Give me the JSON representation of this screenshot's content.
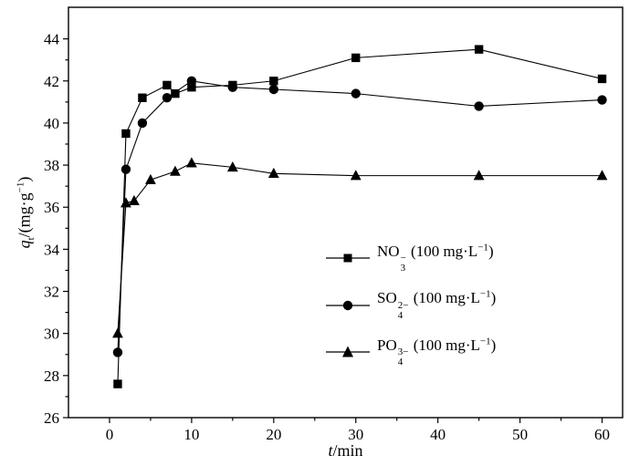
{
  "figure": {
    "background_color": "#ffffff",
    "line_color": "#000000",
    "text_color": "#000000"
  },
  "chart_data": {
    "type": "line",
    "title": "",
    "grid": false,
    "legend_position": "inside lower-right",
    "xlim": [
      -5,
      62.5
    ],
    "ylim": [
      26,
      45.5
    ],
    "xticks": [
      0,
      10,
      20,
      30,
      40,
      50,
      60
    ],
    "yticks": [
      26,
      28,
      30,
      32,
      34,
      36,
      38,
      40,
      42,
      44
    ],
    "x_minor_ticks": [
      5,
      15,
      25,
      35,
      45,
      55
    ],
    "y_minor_ticks": [
      27,
      29,
      31,
      33,
      35,
      37,
      39,
      41,
      43
    ],
    "xlabel": {
      "variable": "t",
      "unit": "/min"
    },
    "ylabel": {
      "variable": "q",
      "subscript": "t",
      "unit_pre": "/(mg·g",
      "exp": "−1",
      "unit_post": ")"
    },
    "series": [
      {
        "id": "NO3",
        "name": "NO3- (100 mg/L)",
        "marker": "square",
        "color": "#000000",
        "label": {
          "base": "NO",
          "sup": "−",
          "sub": "3",
          "conc_pre": " (100 mg·L",
          "conc_exp": "−1",
          "conc_post": ")"
        },
        "x": [
          1,
          2,
          4,
          7,
          8,
          10,
          15,
          20,
          30,
          45,
          60
        ],
        "y": [
          27.6,
          39.5,
          41.2,
          41.8,
          41.4,
          41.7,
          41.8,
          42.0,
          43.1,
          43.5,
          42.1
        ]
      },
      {
        "id": "SO4",
        "name": "SO42- (100 mg/L)",
        "marker": "circle",
        "color": "#000000",
        "label": {
          "base": "SO",
          "sup": "2−",
          "sub": "4",
          "conc_pre": " (100 mg·L",
          "conc_exp": "−1",
          "conc_post": ")"
        },
        "x": [
          1,
          2,
          4,
          7,
          10,
          15,
          20,
          30,
          45,
          60
        ],
        "y": [
          29.1,
          37.8,
          40.0,
          41.2,
          42.0,
          41.7,
          41.6,
          41.4,
          40.8,
          41.1
        ]
      },
      {
        "id": "PO4",
        "name": "PO43- (100 mg/L)",
        "marker": "triangle",
        "color": "#000000",
        "label": {
          "base": "PO",
          "sup": "3−",
          "sub": "4",
          "conc_pre": " (100 mg·L",
          "conc_exp": "−1",
          "conc_post": ")"
        },
        "x": [
          1,
          2,
          3,
          5,
          8,
          10,
          15,
          20,
          30,
          45,
          60
        ],
        "y": [
          30.0,
          36.2,
          36.3,
          37.3,
          37.7,
          38.1,
          37.9,
          37.6,
          37.5,
          37.5,
          37.5
        ]
      }
    ]
  }
}
